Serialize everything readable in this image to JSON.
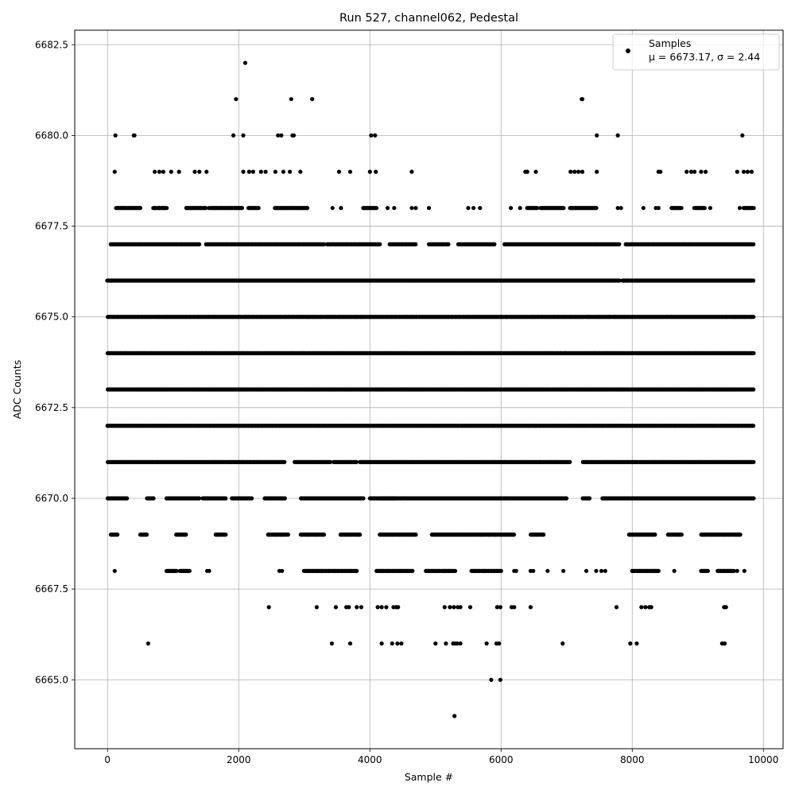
{
  "chart_data": {
    "type": "scatter",
    "title": "Run 527, channel062, Pedestal",
    "xlabel": "Sample #",
    "ylabel": "ADC Counts",
    "xlim": [
      -500,
      10300
    ],
    "ylim": [
      6663.1,
      6682.9
    ],
    "xticks": [
      0,
      2000,
      4000,
      6000,
      8000,
      10000
    ],
    "xtick_labels": [
      "0",
      "2000",
      "4000",
      "6000",
      "8000",
      "10000"
    ],
    "yticks": [
      6665.0,
      6667.5,
      6670.0,
      6672.5,
      6675.0,
      6677.5,
      6680.0,
      6682.5
    ],
    "ytick_labels": [
      "6665.0",
      "6667.5",
      "6670.0",
      "6672.5",
      "6675.0",
      "6677.5",
      "6680.0",
      "6682.5"
    ],
    "grid": true,
    "legend": {
      "placement": "top-right",
      "label": "Samples",
      "stats": "μ = 6673.17, σ = 2.44"
    },
    "color": "#000000",
    "series": [
      {
        "name": "Samples",
        "dense_levels": [
          {
            "y": 6676,
            "ranges": [
              [
                0,
                7800
              ],
              [
                7850,
                9850
              ]
            ]
          },
          {
            "y": 6675,
            "ranges": [
              [
                0,
                9850
              ]
            ]
          },
          {
            "y": 6674,
            "ranges": [
              [
                0,
                9850
              ]
            ]
          },
          {
            "y": 6673,
            "ranges": [
              [
                0,
                9850
              ]
            ]
          },
          {
            "y": 6672,
            "ranges": [
              [
                0,
                9850
              ]
            ]
          },
          {
            "y": 6677,
            "ranges": [
              [
                50,
                1400
              ],
              [
                1500,
                3300
              ],
              [
                3350,
                4150
              ],
              [
                4300,
                4700
              ],
              [
                4900,
                5200
              ],
              [
                5350,
                5900
              ],
              [
                6050,
                7800
              ],
              [
                7900,
                9850
              ]
            ]
          },
          {
            "y": 6671,
            "ranges": [
              [
                0,
                2700
              ],
              [
                2850,
                3400
              ],
              [
                3450,
                3800
              ],
              [
                3850,
                6600
              ],
              [
                6600,
                7050
              ],
              [
                7250,
                9850
              ]
            ]
          },
          {
            "y": 6670,
            "ranges": [
              [
                0,
                300
              ],
              [
                600,
                700
              ],
              [
                900,
                1400
              ],
              [
                1450,
                1800
              ],
              [
                1900,
                2200
              ],
              [
                2400,
                2700
              ],
              [
                2950,
                3900
              ],
              [
                4000,
                4400
              ],
              [
                4150,
                7000
              ],
              [
                7250,
                7350
              ],
              [
                7550,
                9850
              ]
            ]
          },
          {
            "y": 6678,
            "ranges": [
              [
                130,
                500
              ],
              [
                700,
                900
              ],
              [
                1200,
                1500
              ],
              [
                1550,
                2050
              ],
              [
                2150,
                2300
              ],
              [
                2550,
                3050
              ],
              [
                3900,
                4100
              ],
              [
                6400,
                6550
              ],
              [
                6600,
                6950
              ],
              [
                7050,
                7450
              ],
              [
                8600,
                8750
              ],
              [
                8950,
                9100
              ],
              [
                9700,
                9850
              ]
            ]
          },
          {
            "y": 6669,
            "ranges": [
              [
                50,
                150
              ],
              [
                500,
                600
              ],
              [
                1050,
                1200
              ],
              [
                1650,
                1800
              ],
              [
                2450,
                2750
              ],
              [
                2950,
                3300
              ],
              [
                3550,
                3850
              ],
              [
                4150,
                4700
              ],
              [
                4950,
                6200
              ],
              [
                6450,
                6650
              ],
              [
                7950,
                8350
              ],
              [
                8550,
                8750
              ],
              [
                9050,
                9650
              ]
            ]
          },
          {
            "y": 6668,
            "ranges": [
              [
                900,
                1050
              ],
              [
                1100,
                1250
              ],
              [
                3000,
                3800
              ],
              [
                4100,
                4650
              ],
              [
                4850,
                5300
              ],
              [
                5550,
                6000
              ],
              [
                8000,
                8400
              ],
              [
                9050,
                9150
              ],
              [
                9300,
                9550
              ]
            ]
          }
        ],
        "sparse_points": [
          [
            2100,
            6682
          ],
          [
            1960,
            6681
          ],
          [
            2800,
            6681
          ],
          [
            3120,
            6681
          ],
          [
            7230,
            6681
          ],
          [
            7240,
            6681
          ],
          [
            120,
            6680
          ],
          [
            400,
            6680
          ],
          [
            410,
            6680
          ],
          [
            1920,
            6680
          ],
          [
            2070,
            6680
          ],
          [
            2600,
            6680
          ],
          [
            2650,
            6680
          ],
          [
            2820,
            6680
          ],
          [
            2840,
            6680
          ],
          [
            4020,
            6680
          ],
          [
            4080,
            6680
          ],
          [
            7460,
            6680
          ],
          [
            7780,
            6680
          ],
          [
            9680,
            6680
          ],
          [
            110,
            6679
          ],
          [
            720,
            6679
          ],
          [
            790,
            6679
          ],
          [
            850,
            6679
          ],
          [
            970,
            6679
          ],
          [
            1090,
            6679
          ],
          [
            1330,
            6679
          ],
          [
            1400,
            6679
          ],
          [
            1510,
            6679
          ],
          [
            2070,
            6679
          ],
          [
            2160,
            6679
          ],
          [
            2220,
            6679
          ],
          [
            2340,
            6679
          ],
          [
            2410,
            6679
          ],
          [
            2560,
            6679
          ],
          [
            2680,
            6679
          ],
          [
            2780,
            6679
          ],
          [
            2940,
            6679
          ],
          [
            3530,
            6679
          ],
          [
            3700,
            6679
          ],
          [
            4000,
            6679
          ],
          [
            4090,
            6679
          ],
          [
            4640,
            6679
          ],
          [
            6370,
            6679
          ],
          [
            6400,
            6679
          ],
          [
            6530,
            6679
          ],
          [
            7060,
            6679
          ],
          [
            7120,
            6679
          ],
          [
            7180,
            6679
          ],
          [
            7240,
            6679
          ],
          [
            7460,
            6679
          ],
          [
            8400,
            6679
          ],
          [
            8430,
            6679
          ],
          [
            8830,
            6679
          ],
          [
            8900,
            6679
          ],
          [
            8950,
            6679
          ],
          [
            9050,
            6679
          ],
          [
            9120,
            6679
          ],
          [
            9600,
            6679
          ],
          [
            9700,
            6679
          ],
          [
            9760,
            6679
          ],
          [
            9820,
            6679
          ],
          [
            3430,
            6678
          ],
          [
            3560,
            6678
          ],
          [
            4270,
            6678
          ],
          [
            4370,
            6678
          ],
          [
            4640,
            6678
          ],
          [
            4700,
            6678
          ],
          [
            4900,
            6678
          ],
          [
            5500,
            6678
          ],
          [
            5580,
            6678
          ],
          [
            5680,
            6678
          ],
          [
            6150,
            6678
          ],
          [
            6290,
            6678
          ],
          [
            7780,
            6678
          ],
          [
            7830,
            6678
          ],
          [
            8170,
            6678
          ],
          [
            8360,
            6678
          ],
          [
            8400,
            6678
          ],
          [
            9190,
            6678
          ],
          [
            9640,
            6678
          ],
          [
            110,
            6668
          ],
          [
            1520,
            6668
          ],
          [
            1550,
            6668
          ],
          [
            2620,
            6668
          ],
          [
            2660,
            6668
          ],
          [
            6200,
            6668
          ],
          [
            6230,
            6668
          ],
          [
            6450,
            6668
          ],
          [
            6490,
            6668
          ],
          [
            6710,
            6668
          ],
          [
            6950,
            6668
          ],
          [
            7300,
            6668
          ],
          [
            7450,
            6668
          ],
          [
            7530,
            6668
          ],
          [
            7590,
            6668
          ],
          [
            8640,
            6668
          ],
          [
            9600,
            6668
          ],
          [
            9710,
            6668
          ],
          [
            2460,
            6667
          ],
          [
            3190,
            6667
          ],
          [
            3480,
            6667
          ],
          [
            3640,
            6667
          ],
          [
            3680,
            6667
          ],
          [
            3800,
            6667
          ],
          [
            3870,
            6667
          ],
          [
            4120,
            6667
          ],
          [
            4180,
            6667
          ],
          [
            4250,
            6667
          ],
          [
            4360,
            6667
          ],
          [
            4400,
            6667
          ],
          [
            4430,
            6667
          ],
          [
            5140,
            6667
          ],
          [
            5220,
            6667
          ],
          [
            5280,
            6667
          ],
          [
            5340,
            6667
          ],
          [
            5380,
            6667
          ],
          [
            5530,
            6667
          ],
          [
            5940,
            6667
          ],
          [
            5990,
            6667
          ],
          [
            6160,
            6667
          ],
          [
            6200,
            6667
          ],
          [
            6450,
            6667
          ],
          [
            7760,
            6667
          ],
          [
            8140,
            6667
          ],
          [
            8200,
            6667
          ],
          [
            8260,
            6667
          ],
          [
            8290,
            6667
          ],
          [
            9400,
            6667
          ],
          [
            9430,
            6667
          ],
          [
            620,
            6666
          ],
          [
            3420,
            6666
          ],
          [
            3700,
            6666
          ],
          [
            4180,
            6666
          ],
          [
            4340,
            6666
          ],
          [
            4420,
            6666
          ],
          [
            4480,
            6666
          ],
          [
            5000,
            6666
          ],
          [
            5160,
            6666
          ],
          [
            5270,
            6666
          ],
          [
            5300,
            6666
          ],
          [
            5330,
            6666
          ],
          [
            5380,
            6666
          ],
          [
            5780,
            6666
          ],
          [
            5930,
            6666
          ],
          [
            5970,
            6666
          ],
          [
            6940,
            6666
          ],
          [
            7970,
            6666
          ],
          [
            8070,
            6666
          ],
          [
            9370,
            6666
          ],
          [
            9410,
            6666
          ],
          [
            5850,
            6665
          ],
          [
            5990,
            6665
          ],
          [
            5290,
            6664
          ]
        ]
      }
    ]
  }
}
